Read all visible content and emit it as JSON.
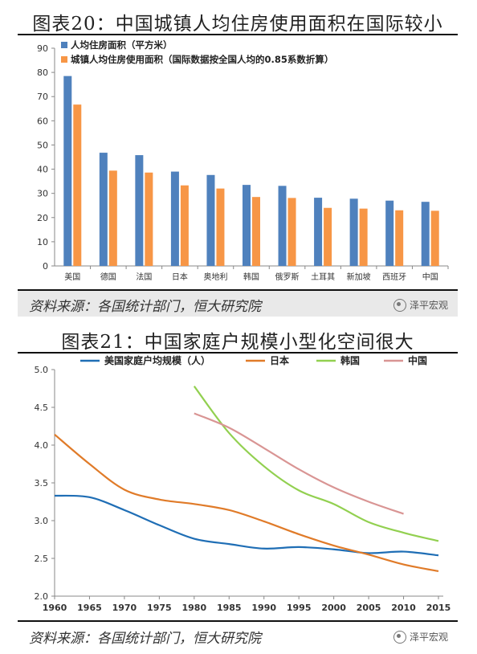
{
  "charts": [
    {
      "figure_title": "图表20：中国城镇人均住房使用面积在国际较小",
      "source": "资料来源：各国统计部门，恒大研究院",
      "watermark": "泽平宏观"
    },
    {
      "figure_title": "图表21：中国家庭户规模小型化空间很大",
      "source": "资料来源：各国统计部门，恒大研究院",
      "watermark": "泽平宏观"
    }
  ],
  "chart_data": [
    {
      "type": "bar",
      "title": "图表20：中国城镇人均住房使用面积在国际较小",
      "categories": [
        "美国",
        "德国",
        "法国",
        "日本",
        "奥地利",
        "韩国",
        "俄罗斯",
        "土耳其",
        "新加坡",
        "西班牙",
        "中国"
      ],
      "series": [
        {
          "name": "人均住房面积（平方米）",
          "color": "#4f81bd",
          "values": [
            78.5,
            46.8,
            45.8,
            39.0,
            37.6,
            33.5,
            33.1,
            28.2,
            27.8,
            27.0,
            26.5
          ]
        },
        {
          "name": "城镇人均住房使用面积（国际数据按全国人均的0.85系数折算）",
          "color": "#f79646",
          "values": [
            66.7,
            39.4,
            38.6,
            33.3,
            32.0,
            28.5,
            28.1,
            24.0,
            23.7,
            23.0,
            22.8
          ]
        }
      ],
      "ylim": [
        0,
        90
      ],
      "yticks": [
        0,
        10,
        20,
        30,
        40,
        50,
        60,
        70,
        80,
        90
      ],
      "legend": "top-left",
      "grid": false
    },
    {
      "type": "line",
      "title": "图表21：中国家庭户规模小型化空间很大",
      "xticks": [
        1960,
        1965,
        1970,
        1975,
        1980,
        1985,
        1990,
        1995,
        2000,
        2005,
        2010,
        2015
      ],
      "xlim": [
        1960,
        2015
      ],
      "ylim": [
        2.0,
        5.0
      ],
      "yticks": [
        "2.0",
        "2.5",
        "3.0",
        "3.5",
        "4.0",
        "4.5",
        "5.0"
      ],
      "legend": "top",
      "grid": false,
      "series": [
        {
          "name": "美国家庭户均规模（人）",
          "color": "#1f6eb5",
          "x": [
            1960,
            1965,
            1970,
            1975,
            1980,
            1985,
            1990,
            1995,
            2000,
            2005,
            2010,
            2015
          ],
          "y": [
            3.33,
            3.31,
            3.14,
            2.94,
            2.76,
            2.69,
            2.63,
            2.65,
            2.62,
            2.57,
            2.59,
            2.54
          ]
        },
        {
          "name": "日本",
          "color": "#e07b29",
          "x": [
            1960,
            1965,
            1970,
            1975,
            1980,
            1985,
            1990,
            1995,
            2000,
            2005,
            2010,
            2015
          ],
          "y": [
            4.14,
            3.75,
            3.41,
            3.28,
            3.22,
            3.14,
            2.99,
            2.82,
            2.67,
            2.55,
            2.42,
            2.33
          ]
        },
        {
          "name": "韩国",
          "color": "#92d050",
          "x": [
            1980,
            1985,
            1990,
            1995,
            2000,
            2005,
            2010,
            2015
          ],
          "y": [
            4.78,
            4.16,
            3.72,
            3.4,
            3.22,
            2.98,
            2.84,
            2.73
          ]
        },
        {
          "name": "中国",
          "color": "#d99594",
          "x": [
            1980,
            1985,
            1990,
            1995,
            2000,
            2005,
            2010
          ],
          "y": [
            4.42,
            4.23,
            3.96,
            3.68,
            3.44,
            3.25,
            3.09
          ]
        }
      ]
    }
  ]
}
